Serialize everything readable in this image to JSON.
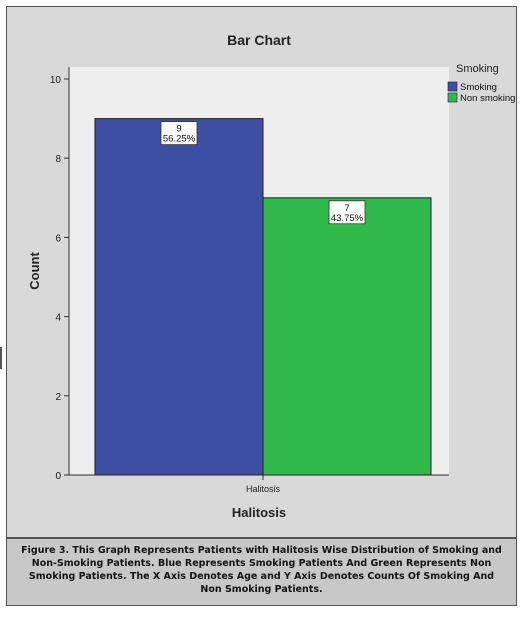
{
  "chart_data": {
    "type": "bar",
    "title": "Bar Chart",
    "xlabel": "Halitosis",
    "ylabel": "Count",
    "categories": [
      "Halitosis"
    ],
    "ylim": [
      0,
      10
    ],
    "yticks": [
      0,
      2,
      4,
      6,
      8,
      10
    ],
    "grid": false,
    "legend": {
      "title": "Smoking",
      "placement": "top-right"
    },
    "series": [
      {
        "name": "Smoking",
        "values": [
          9
        ],
        "label": "9",
        "percent": "56.25%",
        "color": "#3d4fa3"
      },
      {
        "name": "Non smoking",
        "values": [
          7
        ],
        "label": "7",
        "percent": "43.75%",
        "color": "#2fb94a"
      }
    ],
    "colors": {
      "plot_background": "#eeeeee",
      "frame_background": "#d9d9d9"
    }
  },
  "caption": "Figure 3. This Graph Represents Patients with Halitosis Wise Distribution of Smoking and Non-Smoking Patients. Blue Represents Smoking Patients And Green Represents Non Smoking Patients. The X Axis Denotes Age and Y Axis Denotes Counts Of Smoking And Non Smoking Patients."
}
